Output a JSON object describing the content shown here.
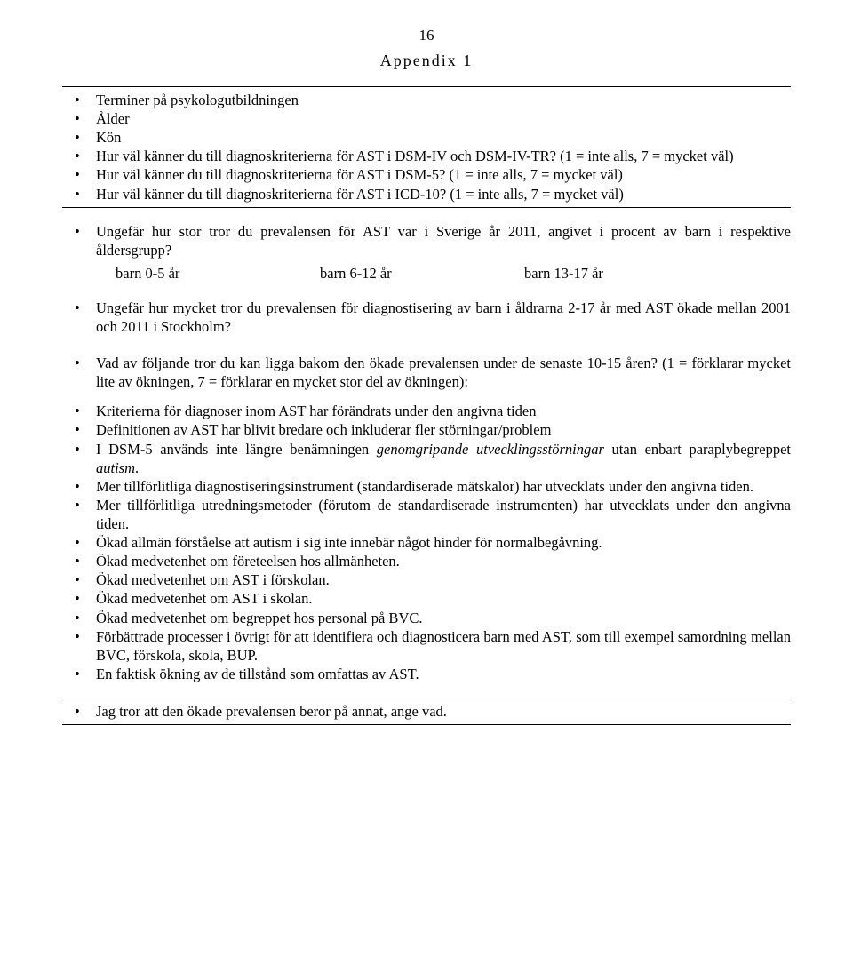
{
  "page_number": "16",
  "appendix_title": "Appendix 1",
  "section1": {
    "items": [
      "Terminer på psykologutbildningen",
      "Ålder",
      "Kön",
      "Hur väl känner du till diagnoskriterierna för AST i DSM-IV och DSM-IV-TR? (1 = inte alls, 7 = mycket väl)",
      "Hur väl känner du till diagnoskriterierna för AST i DSM-5? (1 = inte alls, 7 = mycket väl)",
      "Hur väl känner du till diagnoskriterierna för AST i ICD-10? (1 = inte alls, 7 = mycket väl)"
    ]
  },
  "section2": {
    "q1": "Ungefär hur stor tror du prevalensen för AST var i Sverige år 2011, angivet i procent av barn i respektive åldersgrupp?",
    "ages": [
      "barn 0-5 år",
      "barn 6-12 år",
      "barn 13-17 år"
    ],
    "q2": "Ungefär hur mycket tror du prevalensen för diagnostisering av barn i åldrarna 2-17 år med AST ökade mellan 2001 och 2011 i Stockholm?",
    "q3": "Vad av följande tror du kan ligga bakom den ökade prevalensen under de senaste 10-15 åren? (1 = förklarar mycket lite av ökningen, 7 = förklarar en mycket stor del av ökningen):",
    "reasons_pre": [
      "Kriterierna för diagnoser inom AST har förändrats under den angivna tiden",
      "Definitionen av AST har blivit bredare och inkluderar fler störningar/problem"
    ],
    "dsm5_a": "I DSM-5 används inte längre benämningen ",
    "dsm5_it1": "genomgripande utvecklingsstörningar",
    "dsm5_b": " utan enbart paraplybegreppet ",
    "dsm5_it2": "autism",
    "dsm5_c": ".",
    "reasons_post": [
      "Mer tillförlitliga diagnostiseringsinstrument (standardiserade mätskalor) har utvecklats under den angivna tiden.",
      "Mer tillförlitliga utredningsmetoder (förutom de standardiserade instrumenten) har utvecklats under den angivna tiden.",
      "Ökad allmän förståelse att autism i sig inte innebär något hinder för normalbegåvning.",
      "Ökad medvetenhet om företeelsen hos allmänheten.",
      "Ökad medvetenhet om AST i förskolan.",
      "Ökad medvetenhet om AST i skolan.",
      "Ökad medvetenhet om begreppet hos personal på BVC.",
      "Förbättrade processer i övrigt för att identifiera och diagnosticera barn med AST, som till exempel samordning mellan BVC, förskola, skola, BUP.",
      "En faktisk ökning av de tillstånd som omfattas av AST."
    ]
  },
  "section3": {
    "item": "Jag tror att den ökade prevalensen beror på annat, ange vad."
  }
}
